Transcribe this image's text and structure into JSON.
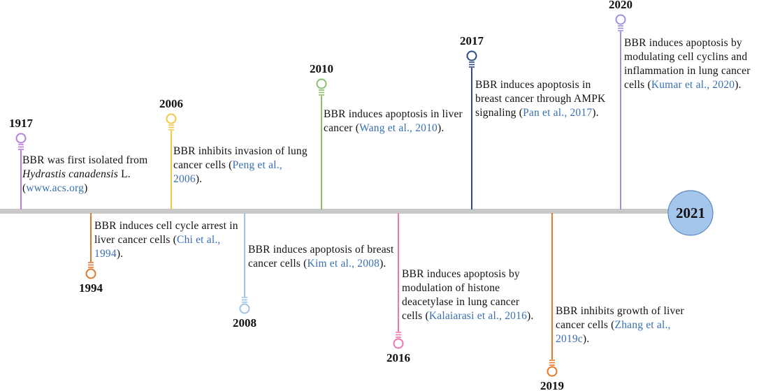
{
  "end_year": "2021",
  "events": [
    {
      "year": "1917",
      "color": "#b77fe0",
      "segments": [
        {
          "text": "BBR was first isolated from "
        },
        {
          "text": "Hydrastis canadensis",
          "kind": "italic"
        },
        {
          "text": " L. ("
        },
        {
          "text": "www.acs.org",
          "kind": "citation"
        },
        {
          "text": ")"
        }
      ]
    },
    {
      "year": "1994",
      "color": "#e0782f",
      "segments": [
        {
          "text": "BBR induces cell cycle arrest in liver cancer cells ("
        },
        {
          "text": "Chi et al., 1994",
          "kind": "citation"
        },
        {
          "text": ")."
        }
      ]
    },
    {
      "year": "2006",
      "color": "#f0c94a",
      "segments": [
        {
          "text": "BBR inhibits invasion of lung cancer cells ("
        },
        {
          "text": "Peng et al., 2006",
          "kind": "citation"
        },
        {
          "text": ")."
        }
      ]
    },
    {
      "year": "2008",
      "color": "#9fc3e6",
      "segments": [
        {
          "text": "BBR induces apoptosis of breast cancer cells ("
        },
        {
          "text": "Kim et al., 2008",
          "kind": "citation"
        },
        {
          "text": ")."
        }
      ]
    },
    {
      "year": "2010",
      "color": "#8cc06a",
      "segments": [
        {
          "text": "BBR induces apoptosis in liver cancer ("
        },
        {
          "text": "Wang et al., 2010",
          "kind": "citation"
        },
        {
          "text": ")."
        }
      ]
    },
    {
      "year": "2016",
      "color": "#ef75ad",
      "segments": [
        {
          "text": "BBR induces apoptosis by modulation of histone deacetylase in lung cancer cells ("
        },
        {
          "text": "Kalaiarasi et al., 2016",
          "kind": "citation"
        },
        {
          "text": ")."
        }
      ]
    },
    {
      "year": "2017",
      "color": "#2d4a8a",
      "segments": [
        {
          "text": "BBR induces apoptosis in breast cancer through AMPK signaling ("
        },
        {
          "text": "Pan et al., 2017",
          "kind": "citation"
        },
        {
          "text": ")."
        }
      ]
    },
    {
      "year": "2019",
      "color": "#e8772a",
      "segments": [
        {
          "text": "BBR inhibits growth of liver cancer cells ("
        },
        {
          "text": "Zhang et al., 2019c",
          "kind": "citation"
        },
        {
          "text": ")."
        }
      ]
    },
    {
      "year": "2020",
      "color": "#9b92e2",
      "segments": [
        {
          "text": "BBR induces apoptosis by modulating cell cyclins and inflammation in lung cancer cells ("
        },
        {
          "text": "Kumar et al., 2020",
          "kind": "citation"
        },
        {
          "text": ")."
        }
      ]
    }
  ]
}
